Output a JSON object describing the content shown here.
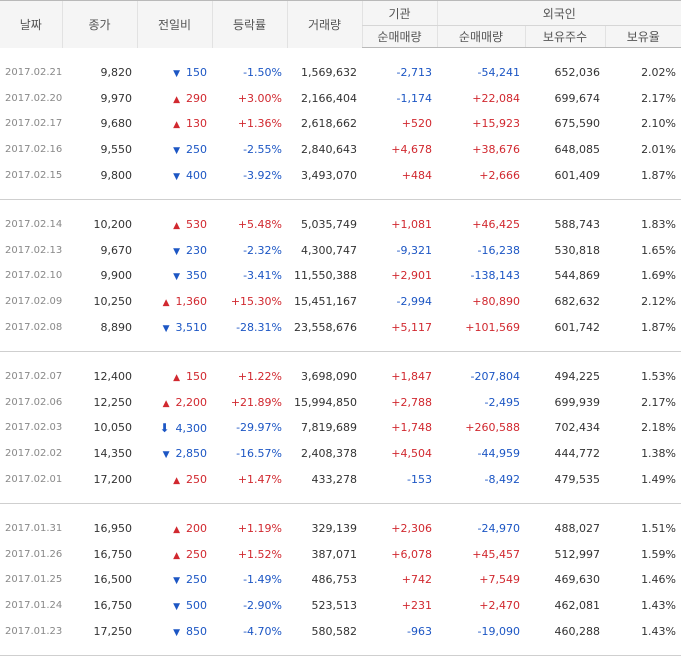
{
  "headers": {
    "date": "날짜",
    "close": "종가",
    "change": "전일비",
    "rate": "등락률",
    "volume": "거래량",
    "institution": "기관",
    "foreign": "외국인",
    "inst_net": "순매매량",
    "frgn_net": "순매매량",
    "frgn_hold": "보유주수",
    "frgn_ratio": "보유율"
  },
  "colors": {
    "up": "#d1282f",
    "down": "#1c56c4"
  },
  "groups": [
    {
      "rows": [
        {
          "date": "2017.02.21",
          "close": "9,820",
          "dir": "down",
          "change": "150",
          "rate": "-1.50%",
          "volume": "1,569,632",
          "inst": "-2,713",
          "frgn": "-54,241",
          "hold": "652,036",
          "ratio": "2.02%"
        },
        {
          "date": "2017.02.20",
          "close": "9,970",
          "dir": "up",
          "change": "290",
          "rate": "+3.00%",
          "volume": "2,166,404",
          "inst": "-1,174",
          "frgn": "+22,084",
          "hold": "699,674",
          "ratio": "2.17%"
        },
        {
          "date": "2017.02.17",
          "close": "9,680",
          "dir": "up",
          "change": "130",
          "rate": "+1.36%",
          "volume": "2,618,662",
          "inst": "+520",
          "frgn": "+15,923",
          "hold": "675,590",
          "ratio": "2.10%"
        },
        {
          "date": "2017.02.16",
          "close": "9,550",
          "dir": "down",
          "change": "250",
          "rate": "-2.55%",
          "volume": "2,840,643",
          "inst": "+4,678",
          "frgn": "+38,676",
          "hold": "648,085",
          "ratio": "2.01%"
        },
        {
          "date": "2017.02.15",
          "close": "9,800",
          "dir": "down",
          "change": "400",
          "rate": "-3.92%",
          "volume": "3,493,070",
          "inst": "+484",
          "frgn": "+2,666",
          "hold": "601,409",
          "ratio": "1.87%"
        }
      ]
    },
    {
      "rows": [
        {
          "date": "2017.02.14",
          "close": "10,200",
          "dir": "up",
          "change": "530",
          "rate": "+5.48%",
          "volume": "5,035,749",
          "inst": "+1,081",
          "frgn": "+46,425",
          "hold": "588,743",
          "ratio": "1.83%"
        },
        {
          "date": "2017.02.13",
          "close": "9,670",
          "dir": "down",
          "change": "230",
          "rate": "-2.32%",
          "volume": "4,300,747",
          "inst": "-9,321",
          "frgn": "-16,238",
          "hold": "530,818",
          "ratio": "1.65%"
        },
        {
          "date": "2017.02.10",
          "close": "9,900",
          "dir": "down",
          "change": "350",
          "rate": "-3.41%",
          "volume": "11,550,388",
          "inst": "+2,901",
          "frgn": "-138,143",
          "hold": "544,869",
          "ratio": "1.69%"
        },
        {
          "date": "2017.02.09",
          "close": "10,250",
          "dir": "up",
          "change": "1,360",
          "rate": "+15.30%",
          "volume": "15,451,167",
          "inst": "-2,994",
          "frgn": "+80,890",
          "hold": "682,632",
          "ratio": "2.12%"
        },
        {
          "date": "2017.02.08",
          "close": "8,890",
          "dir": "down",
          "change": "3,510",
          "rate": "-28.31%",
          "volume": "23,558,676",
          "inst": "+5,117",
          "frgn": "+101,569",
          "hold": "601,742",
          "ratio": "1.87%"
        }
      ]
    },
    {
      "rows": [
        {
          "date": "2017.02.07",
          "close": "12,400",
          "dir": "up",
          "change": "150",
          "rate": "+1.22%",
          "volume": "3,698,090",
          "inst": "+1,847",
          "frgn": "-207,804",
          "hold": "494,225",
          "ratio": "1.53%"
        },
        {
          "date": "2017.02.06",
          "close": "12,250",
          "dir": "up",
          "change": "2,200",
          "rate": "+21.89%",
          "volume": "15,994,850",
          "inst": "+2,788",
          "frgn": "-2,495",
          "hold": "699,939",
          "ratio": "2.17%"
        },
        {
          "date": "2017.02.03",
          "close": "10,050",
          "dir": "limit-down",
          "change": "4,300",
          "rate": "-29.97%",
          "volume": "7,819,689",
          "inst": "+1,748",
          "frgn": "+260,588",
          "hold": "702,434",
          "ratio": "2.18%"
        },
        {
          "date": "2017.02.02",
          "close": "14,350",
          "dir": "down",
          "change": "2,850",
          "rate": "-16.57%",
          "volume": "2,408,378",
          "inst": "+4,504",
          "frgn": "-44,959",
          "hold": "444,772",
          "ratio": "1.38%"
        },
        {
          "date": "2017.02.01",
          "close": "17,200",
          "dir": "up",
          "change": "250",
          "rate": "+1.47%",
          "volume": "433,278",
          "inst": "-153",
          "frgn": "-8,492",
          "hold": "479,535",
          "ratio": "1.49%"
        }
      ]
    },
    {
      "rows": [
        {
          "date": "2017.01.31",
          "close": "16,950",
          "dir": "up",
          "change": "200",
          "rate": "+1.19%",
          "volume": "329,139",
          "inst": "+2,306",
          "frgn": "-24,970",
          "hold": "488,027",
          "ratio": "1.51%"
        },
        {
          "date": "2017.01.26",
          "close": "16,750",
          "dir": "up",
          "change": "250",
          "rate": "+1.52%",
          "volume": "387,071",
          "inst": "+6,078",
          "frgn": "+45,457",
          "hold": "512,997",
          "ratio": "1.59%"
        },
        {
          "date": "2017.01.25",
          "close": "16,500",
          "dir": "down",
          "change": "250",
          "rate": "-1.49%",
          "volume": "486,753",
          "inst": "+742",
          "frgn": "+7,549",
          "hold": "469,630",
          "ratio": "1.46%"
        },
        {
          "date": "2017.01.24",
          "close": "16,750",
          "dir": "down",
          "change": "500",
          "rate": "-2.90%",
          "volume": "523,513",
          "inst": "+231",
          "frgn": "+2,470",
          "hold": "462,081",
          "ratio": "1.43%"
        },
        {
          "date": "2017.01.23",
          "close": "17,250",
          "dir": "down",
          "change": "850",
          "rate": "-4.70%",
          "volume": "580,582",
          "inst": "-963",
          "frgn": "-19,090",
          "hold": "460,288",
          "ratio": "1.43%"
        }
      ]
    }
  ]
}
